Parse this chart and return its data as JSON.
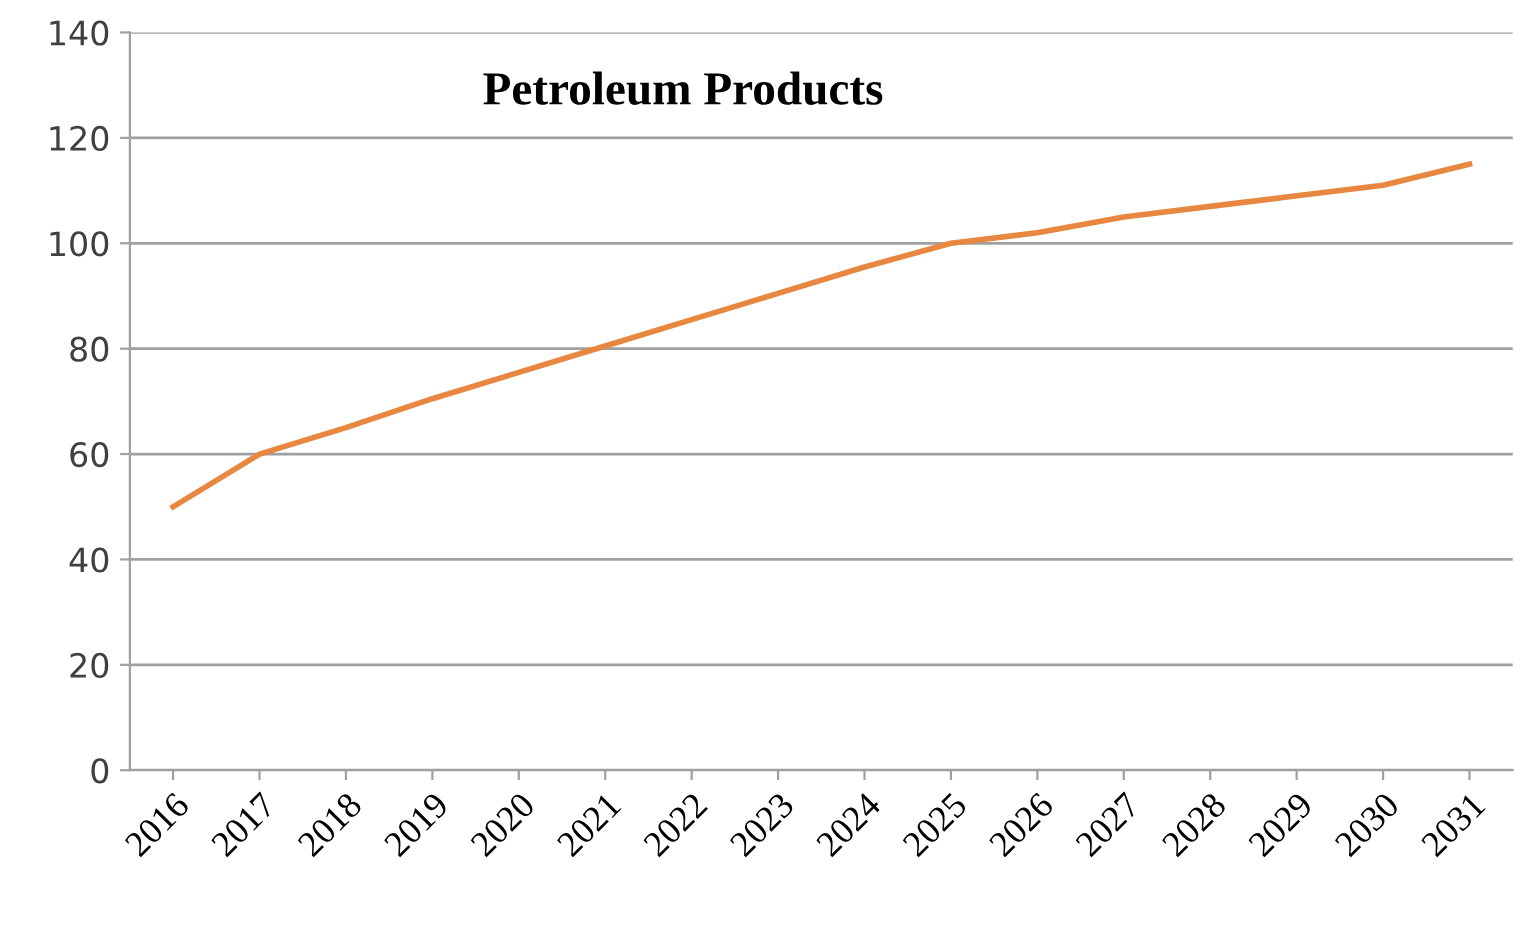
{
  "chart_data": {
    "type": "line",
    "title": "Petroleum Products",
    "categories": [
      "2016",
      "2017",
      "2018",
      "2019",
      "2020",
      "2021",
      "2022",
      "2023",
      "2024",
      "2025",
      "2026",
      "2027",
      "2028",
      "2029",
      "2030",
      "2031"
    ],
    "series": [
      {
        "color": "#e8873f",
        "values": [
          50,
          60,
          65,
          70.5,
          75.5,
          80.5,
          85.5,
          90.5,
          95.5,
          100,
          102,
          105,
          107,
          109,
          111,
          115
        ]
      }
    ],
    "ylim": [
      0,
      140
    ],
    "yticks": [
      0,
      20,
      40,
      60,
      80,
      100,
      120,
      140
    ],
    "grid": "y",
    "marker": "none",
    "line_style": "solid"
  }
}
